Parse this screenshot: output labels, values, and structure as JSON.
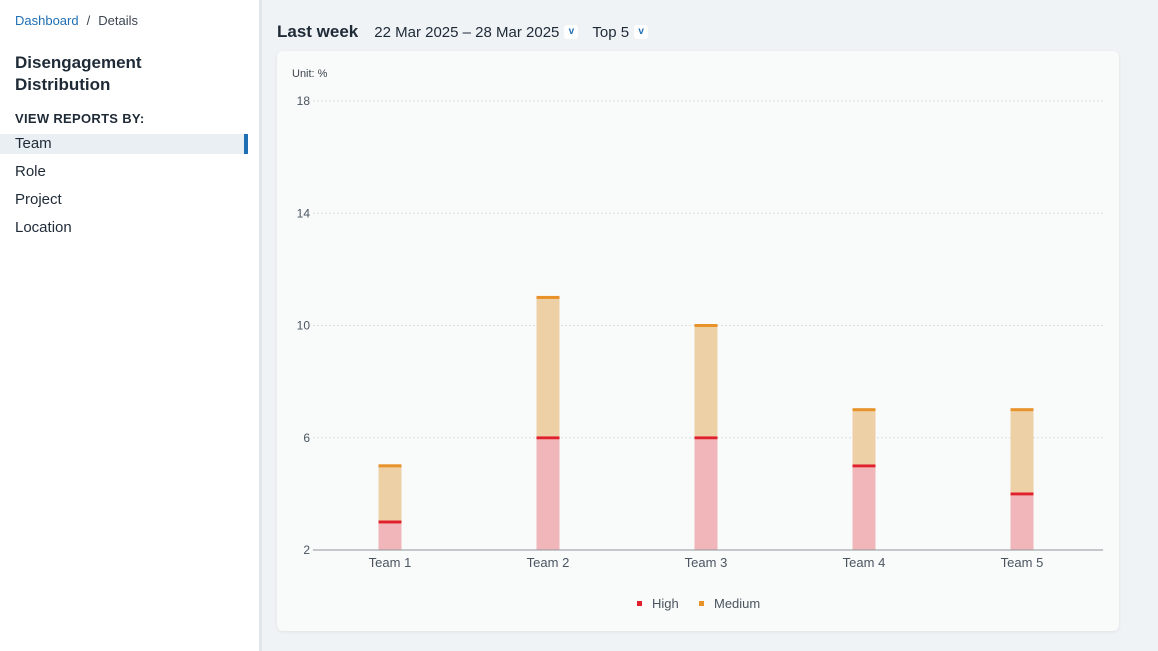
{
  "breadcrumb": {
    "home": "Dashboard",
    "separator": "/",
    "current": "Details"
  },
  "sidebar": {
    "title": "Disengagement Distribution",
    "reports_label": "VIEW REPORTS BY:",
    "items": [
      {
        "label": "Team",
        "active": true
      },
      {
        "label": "Role",
        "active": false
      },
      {
        "label": "Project",
        "active": false
      },
      {
        "label": "Location",
        "active": false
      }
    ]
  },
  "toolbar": {
    "period": "Last week",
    "date_range": "22 Mar 2025 – 28 Mar 2025",
    "top_filter": "Top 5",
    "chevron_glyph": "v"
  },
  "colors": {
    "accent": "#1f6fb5",
    "high": "#e0202a",
    "high_fill": "#f0b6b9",
    "medium": "#e8922a",
    "medium_fill": "#eed0a6"
  },
  "chart_data": {
    "type": "bar",
    "stacked": true,
    "unit_label": "Unit: %",
    "categories": [
      "Team 1",
      "Team 2",
      "Team 3",
      "Team 4",
      "Team 5"
    ],
    "series": [
      {
        "name": "High",
        "values": [
          3,
          6,
          6,
          5,
          4
        ]
      },
      {
        "name": "Medium",
        "values": [
          2,
          5,
          4,
          2,
          3
        ]
      }
    ],
    "ylim": [
      2,
      18
    ],
    "yticks": [
      2,
      6,
      10,
      14,
      18
    ],
    "grid": true,
    "legend": "bottom"
  }
}
